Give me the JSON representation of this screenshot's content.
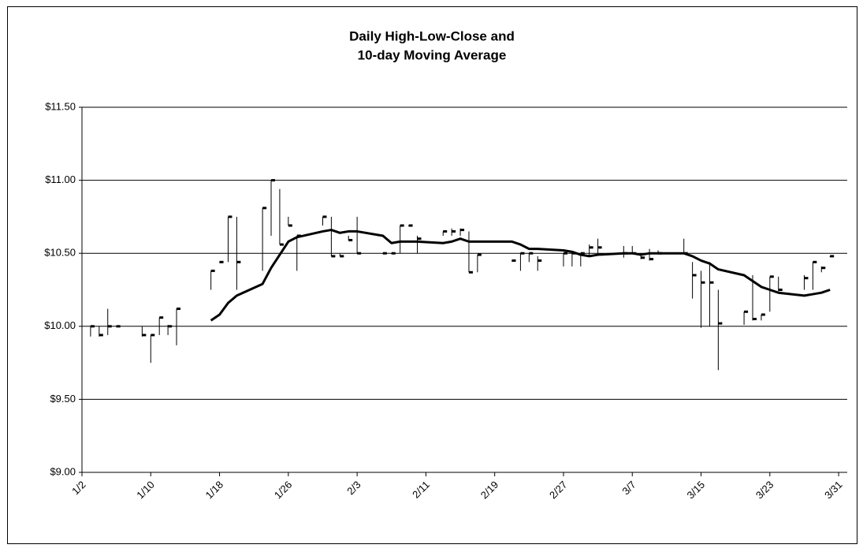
{
  "chart_data": {
    "type": "hlc",
    "title": [
      "Daily High-Low-Close and",
      "10-day Moving Average"
    ],
    "x": [
      "1/3",
      "1/4",
      "1/5",
      "1/6",
      "1/9",
      "1/10",
      "1/11",
      "1/12",
      "1/13",
      "1/17",
      "1/18",
      "1/19",
      "1/20",
      "1/23",
      "1/24",
      "1/25",
      "1/26",
      "1/27",
      "1/30",
      "1/31",
      "2/1",
      "2/2",
      "2/3",
      "2/6",
      "2/7",
      "2/8",
      "2/9",
      "2/10",
      "2/13",
      "2/14",
      "2/15",
      "2/16",
      "2/17",
      "2/21",
      "2/22",
      "2/23",
      "2/24",
      "2/27",
      "2/28",
      "3/1",
      "3/2",
      "3/3",
      "3/6",
      "3/7",
      "3/8",
      "3/9",
      "3/10",
      "3/13",
      "3/14",
      "3/15",
      "3/16",
      "3/17",
      "3/20",
      "3/21",
      "3/22",
      "3/23",
      "3/24",
      "3/27",
      "3/28",
      "3/29",
      "3/30"
    ],
    "high": [
      10.0,
      10.0,
      10.12,
      10.0,
      10.0,
      9.94,
      10.06,
      10.01,
      10.12,
      10.38,
      10.44,
      10.75,
      10.75,
      10.81,
      11.0,
      10.94,
      10.75,
      10.62,
      10.75,
      10.75,
      10.5,
      10.62,
      10.75,
      10.5,
      10.5,
      10.69,
      10.69,
      10.62,
      10.65,
      10.67,
      10.67,
      10.65,
      10.49,
      10.45,
      10.5,
      10.5,
      10.48,
      10.5,
      10.5,
      10.5,
      10.56,
      10.6,
      10.55,
      10.55,
      10.5,
      10.53,
      10.52,
      10.6,
      10.44,
      10.38,
      10.44,
      10.25,
      10.1,
      10.35,
      10.08,
      10.34,
      10.34,
      10.35,
      10.44,
      10.41,
      10.48
    ],
    "low": [
      9.93,
      9.93,
      9.94,
      10.0,
      9.93,
      9.75,
      9.94,
      9.94,
      9.87,
      10.25,
      10.44,
      10.44,
      10.25,
      10.38,
      10.62,
      10.56,
      10.69,
      10.38,
      10.69,
      10.48,
      10.48,
      10.59,
      10.5,
      10.5,
      10.5,
      10.5,
      10.69,
      10.5,
      10.62,
      10.62,
      10.62,
      10.37,
      10.37,
      10.45,
      10.38,
      10.44,
      10.38,
      10.41,
      10.41,
      10.41,
      10.48,
      10.5,
      10.47,
      10.5,
      10.46,
      10.45,
      10.5,
      10.5,
      10.19,
      9.99,
      10.0,
      9.7,
      10.01,
      10.04,
      10.04,
      10.1,
      10.24,
      10.25,
      10.25,
      10.37,
      10.48
    ],
    "close": [
      10.0,
      9.94,
      10.0,
      10.0,
      9.94,
      9.94,
      10.06,
      10.0,
      10.12,
      10.38,
      10.44,
      10.75,
      10.44,
      10.81,
      11.0,
      10.56,
      10.69,
      10.62,
      10.75,
      10.48,
      10.48,
      10.59,
      10.5,
      10.5,
      10.5,
      10.69,
      10.69,
      10.6,
      10.65,
      10.65,
      10.66,
      10.37,
      10.49,
      10.45,
      10.5,
      10.5,
      10.45,
      10.5,
      10.5,
      10.5,
      10.54,
      10.54,
      10.5,
      10.5,
      10.47,
      10.46,
      10.5,
      10.5,
      10.35,
      10.3,
      10.3,
      10.02,
      10.1,
      10.05,
      10.08,
      10.34,
      10.25,
      10.33,
      10.44,
      10.4,
      10.48
    ],
    "moving_average": [
      null,
      null,
      null,
      null,
      null,
      null,
      null,
      null,
      null,
      10.04,
      10.08,
      10.16,
      10.21,
      10.29,
      10.4,
      10.49,
      10.58,
      10.61,
      10.65,
      10.66,
      10.64,
      10.65,
      10.65,
      10.62,
      10.57,
      10.58,
      10.58,
      10.58,
      10.57,
      10.58,
      10.6,
      10.58,
      10.58,
      10.58,
      10.56,
      10.53,
      10.53,
      10.52,
      10.51,
      10.49,
      10.48,
      10.49,
      10.5,
      10.5,
      10.49,
      10.5,
      10.5,
      10.5,
      10.48,
      10.45,
      10.43,
      10.39,
      10.35,
      10.31,
      10.27,
      10.25,
      10.23,
      10.21,
      10.22,
      10.23,
      10.25
    ],
    "color": "#000000",
    "xlim": [
      "1/2",
      "4/1"
    ],
    "xticks": [
      "1/2",
      "1/10",
      "1/18",
      "1/26",
      "2/3",
      "2/11",
      "2/19",
      "2/27",
      "3/7",
      "3/15",
      "3/23",
      "3/31"
    ],
    "ylim": [
      9.0,
      11.5
    ],
    "yticks": [
      {
        "value": 9.0,
        "label": "$9.00"
      },
      {
        "value": 9.5,
        "label": "$9.50"
      },
      {
        "value": 10.0,
        "label": "$10.00"
      },
      {
        "value": 10.5,
        "label": "$10.50"
      },
      {
        "value": 11.0,
        "label": "$11.00"
      },
      {
        "value": 11.5,
        "label": "$11.50"
      }
    ],
    "grid": true
  }
}
